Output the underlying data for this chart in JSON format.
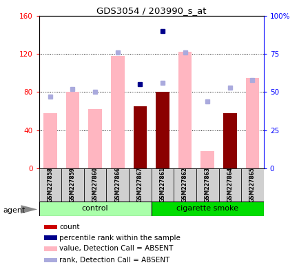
{
  "title": "GDS3054 / 203990_s_at",
  "samples": [
    "GSM227858",
    "GSM227859",
    "GSM227860",
    "GSM227866",
    "GSM227867",
    "GSM227861",
    "GSM227862",
    "GSM227863",
    "GSM227864",
    "GSM227865"
  ],
  "count": [
    null,
    null,
    null,
    null,
    65,
    80,
    null,
    null,
    58,
    null
  ],
  "percentile_rank": [
    null,
    null,
    null,
    null,
    55,
    90,
    null,
    null,
    null,
    null
  ],
  "value_absent": [
    58,
    80,
    62,
    118,
    null,
    null,
    122,
    18,
    null,
    95
  ],
  "rank_absent": [
    47,
    52,
    50,
    76,
    null,
    56,
    76,
    44,
    53,
    58
  ],
  "left_ylim": [
    0,
    160
  ],
  "right_ylim": [
    0,
    100
  ],
  "left_yticks": [
    0,
    40,
    80,
    120,
    160
  ],
  "right_yticks": [
    0,
    25,
    50,
    75,
    100
  ],
  "left_yticklabels": [
    "0",
    "40",
    "80",
    "120",
    "160"
  ],
  "right_yticklabels": [
    "0",
    "25",
    "50",
    "75",
    "100%"
  ],
  "bar_color_count": "#8B0000",
  "bar_color_absent": "#FFB6C1",
  "dot_color_rank": "#00008B",
  "dot_color_rank_absent": "#AAAADD",
  "legend_items": [
    {
      "color": "#CC0000",
      "label": "count"
    },
    {
      "color": "#00008B",
      "label": "percentile rank within the sample"
    },
    {
      "color": "#FFB6C1",
      "label": "value, Detection Call = ABSENT"
    },
    {
      "color": "#AAAADD",
      "label": "rank, Detection Call = ABSENT"
    }
  ],
  "ctrl_color": "#AAFFAA",
  "smoke_color": "#00DD00",
  "ctrl_label": "control",
  "smoke_label": "cigarette smoke",
  "agent_label": "agent"
}
